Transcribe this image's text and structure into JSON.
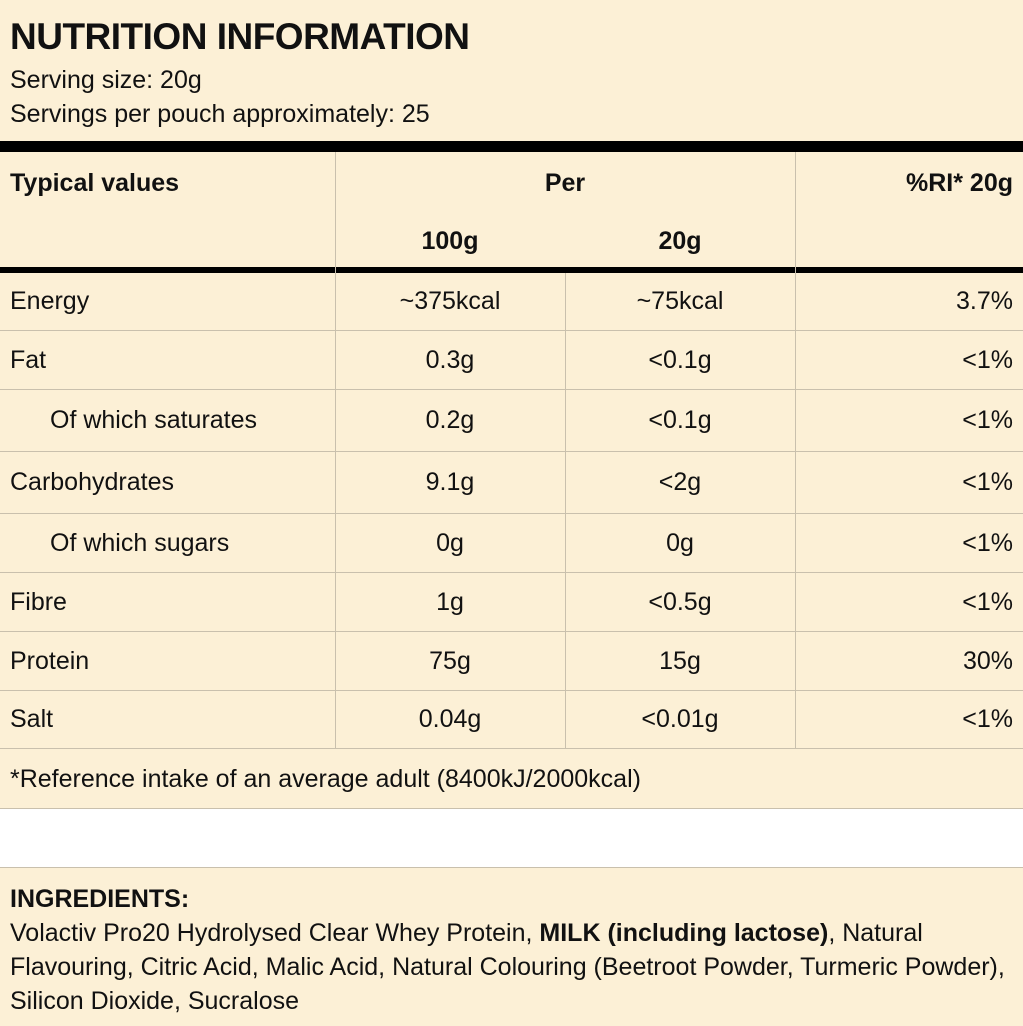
{
  "title": "NUTRITION INFORMATION",
  "serving_size": "Serving size: 20g",
  "servings_per_pouch": "Servings per pouch approximately: 25",
  "table": {
    "headers": {
      "typical": "Typical values",
      "per": "Per",
      "per100": "100g",
      "per20": "20g",
      "ri": "%RI* 20g"
    },
    "rows": [
      {
        "name": "Energy",
        "per100": "~375kcal",
        "per20": "~75kcal",
        "ri": "3.7%",
        "indent": false
      },
      {
        "name": "Fat",
        "per100": "0.3g",
        "per20": "<0.1g",
        "ri": "<1%",
        "indent": false
      },
      {
        "name": "Of which saturates",
        "per100": "0.2g",
        "per20": "<0.1g",
        "ri": "<1%",
        "indent": true
      },
      {
        "name": "Carbohydrates",
        "per100": "9.1g",
        "per20": "<2g",
        "ri": "<1%",
        "indent": false
      },
      {
        "name": "Of which sugars",
        "per100": "0g",
        "per20": "0g",
        "ri": "<1%",
        "indent": true
      },
      {
        "name": "Fibre",
        "per100": "1g",
        "per20": "<0.5g",
        "ri": "<1%",
        "indent": false
      },
      {
        "name": "Protein",
        "per100": "75g",
        "per20": "15g",
        "ri": "30%",
        "indent": false
      },
      {
        "name": "Salt",
        "per100": "0.04g",
        "per20": "<0.01g",
        "ri": "<1%",
        "indent": false
      }
    ],
    "footnote": "*Reference intake of an average adult (8400kJ/2000kcal)"
  },
  "ingredients": {
    "heading": "INGREDIENTS:",
    "text_before": "Volactiv Pro20 Hydrolysed Clear Whey Protein, ",
    "allergen": "MILK (including lactose)",
    "text_after": ", Natural Flavouring, Citric Acid, Malic Acid, Natural Colouring (Beetroot Powder, Turmeric Powder), Silicon Dioxide, Sucralose"
  },
  "colors": {
    "background": "#fcf0d6",
    "rule": "#000000",
    "grid": "#c9c0ad"
  }
}
